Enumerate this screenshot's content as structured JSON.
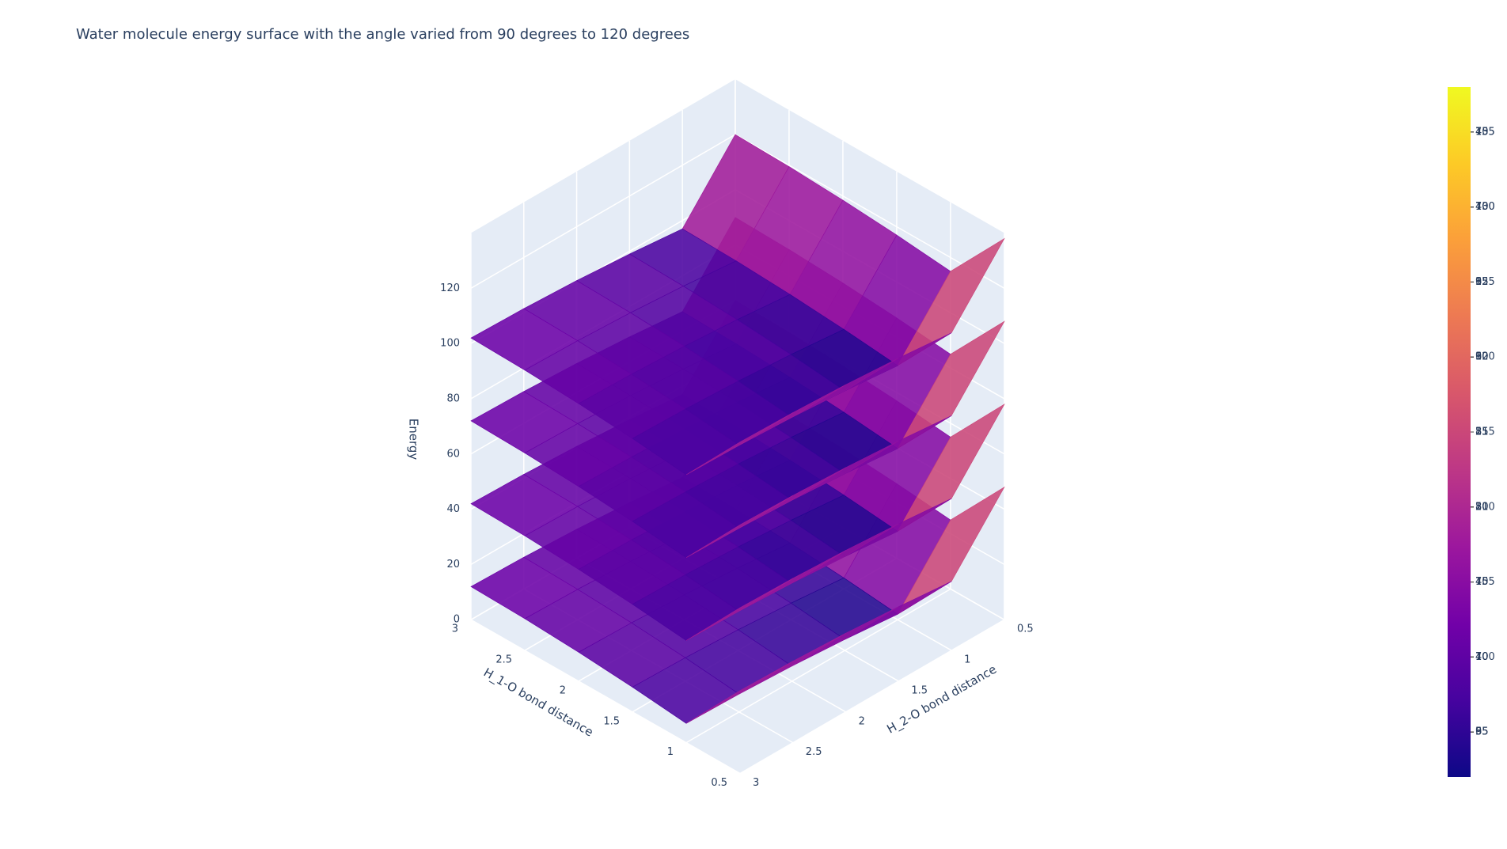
{
  "chart_data": {
    "type": "surface",
    "title": "Water molecule energy surface with the angle varied from 90 degrees to 120 degrees",
    "xlabel": "H_1-O bond distance",
    "ylabel": "H_2-O bond distance",
    "zlabel": "Energy",
    "x": [
      0.5,
      1,
      1.5,
      2,
      2.5,
      3
    ],
    "y": [
      0.5,
      1,
      1.5,
      2,
      2.5,
      3
    ],
    "xlim": [
      0.5,
      3
    ],
    "ylim": [
      0.5,
      3
    ],
    "zlim": [
      0,
      140
    ],
    "xticks": [
      0.5,
      1,
      1.5,
      2,
      2.5,
      3
    ],
    "yticks": [
      0.5,
      1,
      1.5,
      2,
      2.5,
      3
    ],
    "zticks": [
      0,
      20,
      40,
      60,
      80,
      100,
      120
    ],
    "grid": true,
    "colorscale": [
      "#0d0887",
      "#46039f",
      "#7201a8",
      "#9c179e",
      "#bd3786",
      "#d8576b",
      "#ed7953",
      "#fb9f3a",
      "#fdca26",
      "#f0f921"
    ],
    "series": [
      {
        "cmin": 2,
        "cmax": 48,
        "cticks": [
          5,
          10,
          15,
          20,
          25,
          30,
          35,
          40,
          45
        ],
        "z": [
          [
            48,
            25,
            27,
            28.5,
            29.5,
            30
          ],
          [
            25,
            2,
            4,
            5.5,
            6.5,
            7
          ],
          [
            27,
            4,
            6,
            7.5,
            8.5,
            9
          ],
          [
            28.5,
            5.5,
            7.5,
            9,
            10,
            10.5
          ],
          [
            29.5,
            6.5,
            8.5,
            10,
            11,
            11.5
          ],
          [
            30,
            7,
            9,
            10.5,
            11.5,
            12
          ]
        ]
      },
      {
        "cmin": 32,
        "cmax": 78,
        "cticks": [
          35,
          40,
          45,
          50,
          55,
          60,
          65,
          70,
          75
        ],
        "z": [
          [
            78,
            55,
            57,
            58.5,
            59.5,
            60
          ],
          [
            55,
            32,
            34,
            35.5,
            36.5,
            37
          ],
          [
            57,
            34,
            36,
            37.5,
            38.5,
            39
          ],
          [
            58.5,
            35.5,
            37.5,
            39,
            40,
            40.5
          ],
          [
            59.5,
            36.5,
            38.5,
            40,
            41,
            41.5
          ],
          [
            60,
            37,
            39,
            40.5,
            41.5,
            42
          ]
        ]
      },
      {
        "cmin": 62,
        "cmax": 108,
        "cticks": [
          65,
          70,
          75,
          80,
          85,
          90,
          95,
          100,
          105
        ],
        "z": [
          [
            108,
            85,
            87,
            88.5,
            89.5,
            90
          ],
          [
            85,
            62,
            64,
            65.5,
            66.5,
            67
          ],
          [
            87,
            64,
            66,
            67.5,
            68.5,
            69
          ],
          [
            88.5,
            65.5,
            67.5,
            69,
            70,
            70.5
          ],
          [
            89.5,
            66.5,
            68.5,
            70,
            71,
            71.5
          ],
          [
            90,
            67,
            69,
            70.5,
            71.5,
            72
          ]
        ]
      },
      {
        "cmin": 92,
        "cmax": 138,
        "cticks": [
          95,
          100,
          105,
          110,
          115,
          120,
          125,
          130,
          135
        ],
        "z": [
          [
            138,
            115,
            117,
            118.5,
            119.5,
            120
          ],
          [
            115,
            92,
            94,
            95.5,
            96.5,
            97
          ],
          [
            117,
            94,
            96,
            97.5,
            98.5,
            99
          ],
          [
            118.5,
            95.5,
            97.5,
            99,
            100,
            100.5
          ],
          [
            119.5,
            96.5,
            98.5,
            100,
            101,
            101.5
          ],
          [
            120,
            97,
            99,
            100.5,
            101.5,
            102
          ]
        ]
      }
    ]
  }
}
